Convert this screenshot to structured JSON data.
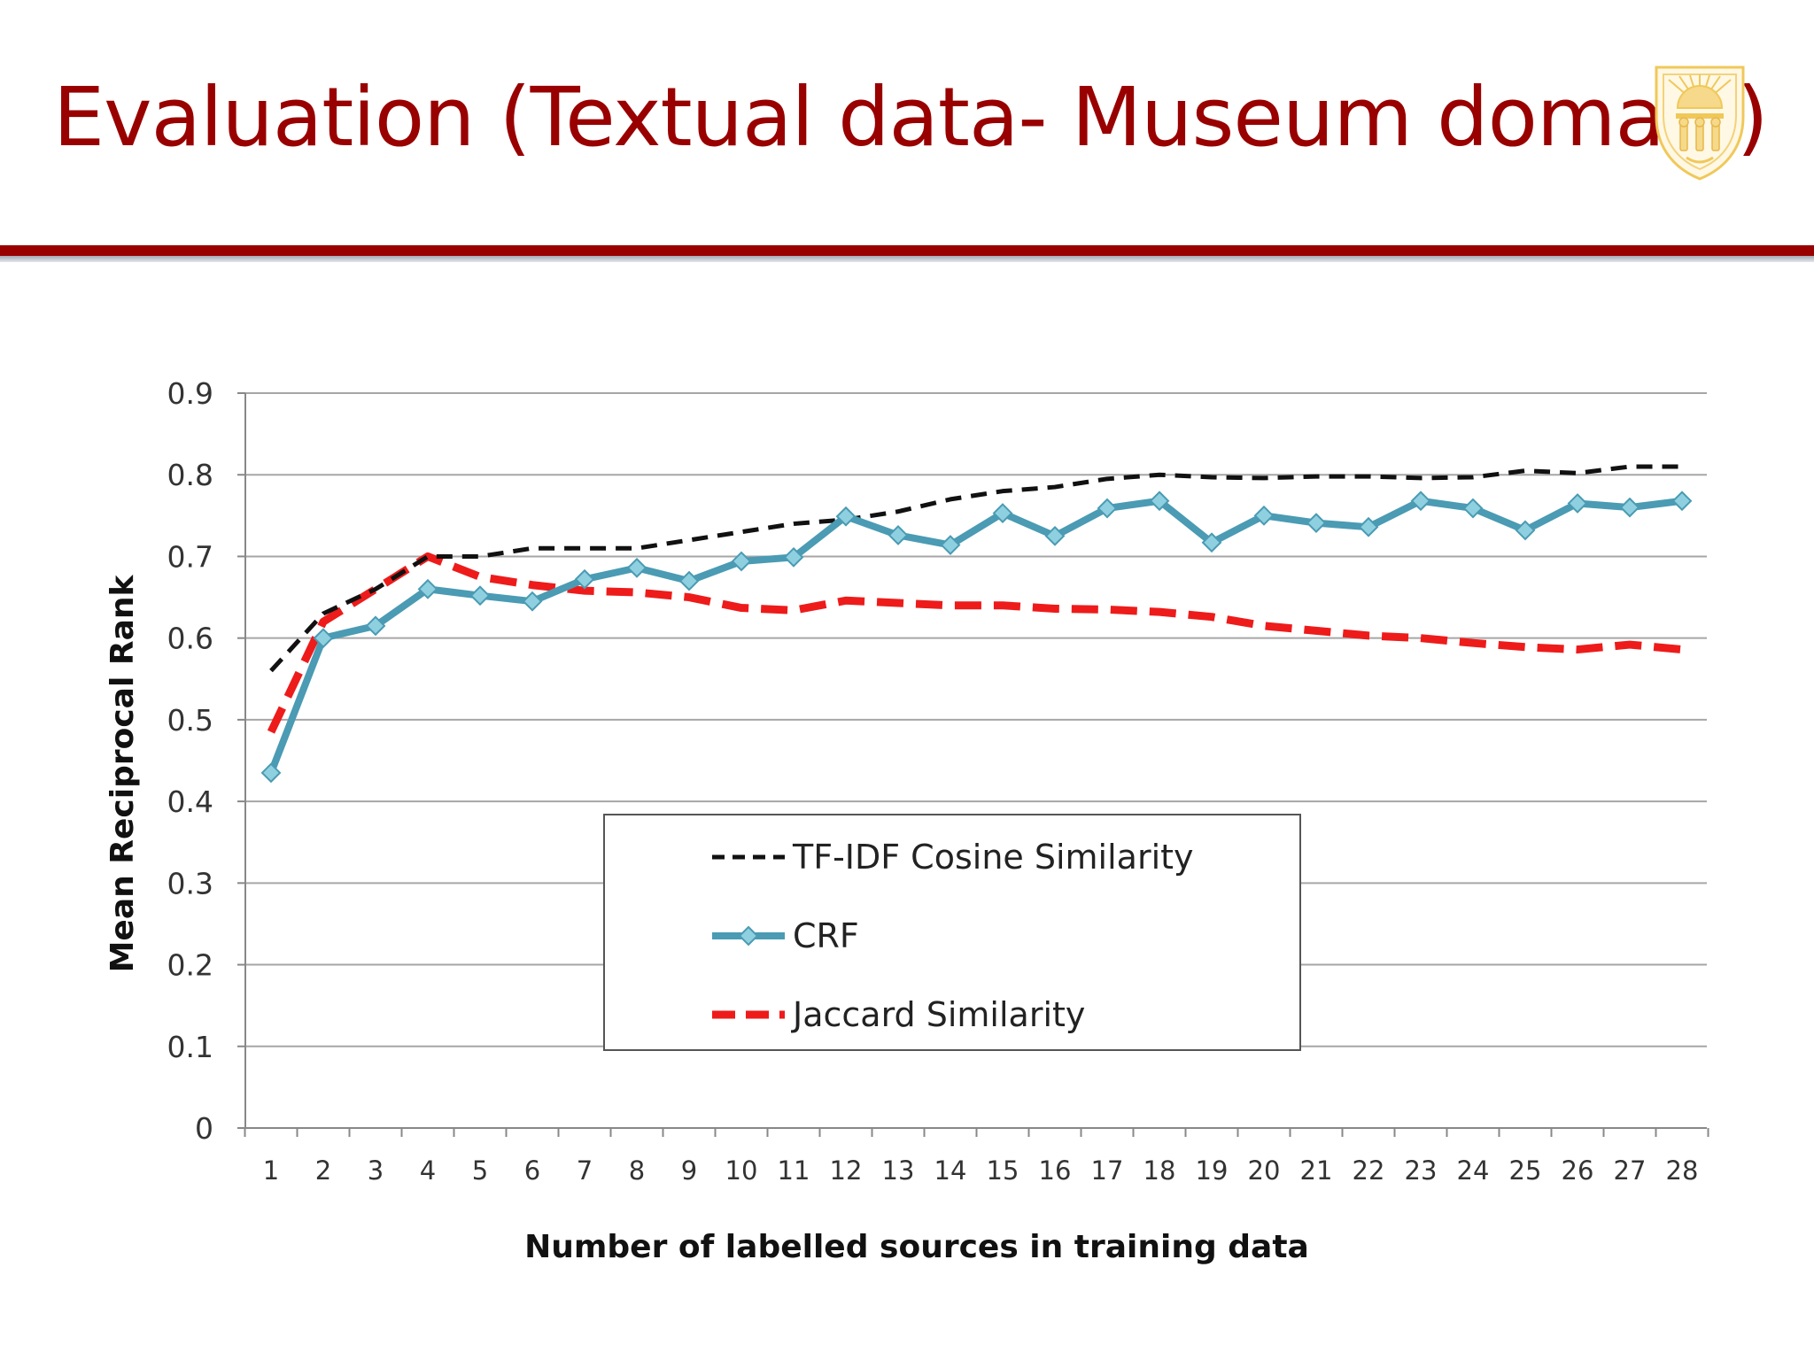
{
  "slide": {
    "title": "Evaluation (Textual data- Museum domain)",
    "logo_icon": "shield-seal-icon",
    "colors": {
      "title": "#990000",
      "rule": "#990000",
      "logo": "#f0c85a"
    }
  },
  "chart_data": {
    "type": "line",
    "title": "",
    "xlabel": "Number of labelled sources in training data",
    "ylabel": "Mean Reciprocal Rank",
    "x": [
      1,
      2,
      3,
      4,
      5,
      6,
      7,
      8,
      9,
      10,
      11,
      12,
      13,
      14,
      15,
      16,
      17,
      18,
      19,
      20,
      21,
      22,
      23,
      24,
      25,
      26,
      27,
      28
    ],
    "xticks": [
      "1",
      "2",
      "3",
      "4",
      "5",
      "6",
      "7",
      "8",
      "9",
      "10",
      "11",
      "12",
      "13",
      "14",
      "15",
      "16",
      "17",
      "18",
      "19",
      "20",
      "21",
      "22",
      "23",
      "24",
      "25",
      "26",
      "27",
      "28"
    ],
    "ylim": [
      0,
      0.9
    ],
    "yticks": [
      "0",
      "0.1",
      "0.2",
      "0.3",
      "0.4",
      "0.5",
      "0.6",
      "0.7",
      "0.8",
      "0.9"
    ],
    "grid": true,
    "legend_position": "center-left",
    "series": [
      {
        "name": "TF-IDF Cosine Similarity",
        "color": "#111111",
        "style": "dashed",
        "values": [
          0.56,
          0.63,
          0.66,
          0.7,
          0.7,
          0.71,
          0.71,
          0.71,
          0.72,
          0.73,
          0.74,
          0.745,
          0.755,
          0.77,
          0.78,
          0.785,
          0.795,
          0.8,
          0.797,
          0.796,
          0.798,
          0.798,
          0.796,
          0.797,
          0.805,
          0.802,
          0.81,
          0.81
        ]
      },
      {
        "name": "CRF",
        "color": "#4a9bb3",
        "style": "solid-diamond",
        "values": [
          0.435,
          0.6,
          0.615,
          0.66,
          0.652,
          0.645,
          0.672,
          0.686,
          0.67,
          0.694,
          0.699,
          0.749,
          0.726,
          0.714,
          0.753,
          0.725,
          0.759,
          0.768,
          0.717,
          0.75,
          0.741,
          0.736,
          0.768,
          0.759,
          0.732,
          0.765,
          0.76,
          0.768
        ]
      },
      {
        "name": "Jaccard Similarity",
        "color": "#ee1b1b",
        "style": "dashed-thick",
        "values": [
          0.485,
          0.62,
          0.66,
          0.7,
          0.675,
          0.665,
          0.658,
          0.656,
          0.65,
          0.637,
          0.634,
          0.646,
          0.643,
          0.64,
          0.64,
          0.636,
          0.635,
          0.632,
          0.626,
          0.615,
          0.609,
          0.603,
          0.6,
          0.594,
          0.589,
          0.586,
          0.592,
          0.586
        ]
      }
    ]
  }
}
